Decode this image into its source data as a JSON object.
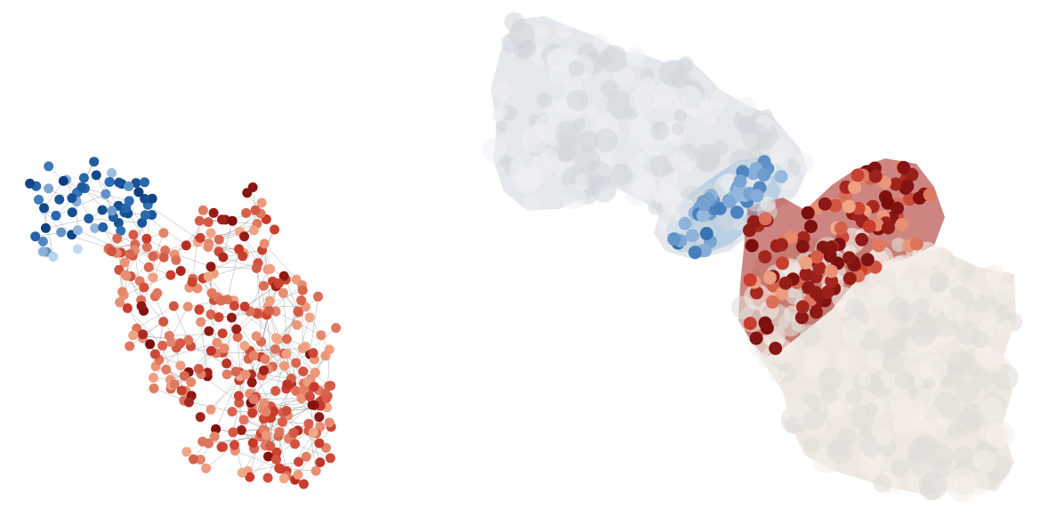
{
  "figure": {
    "panels": [
      {
        "id": "network-graph",
        "kind": "node-link network with blue and red communities"
      },
      {
        "id": "embedding-surface",
        "kind": "3D embedding surface with blue and red node clusters"
      }
    ]
  },
  "colors": {
    "blue_dark": "#0b3d7e",
    "blue_mid": "#2c6db4",
    "blue_light": "#cfe2f3",
    "red_dark": "#7a0e0e",
    "red_mid": "#c83a2a",
    "red_light": "#f2a98a",
    "surface_grey": "#dde1e6",
    "surface_beige": "#ece4dc",
    "edge_grey": "#7f7f7f"
  }
}
